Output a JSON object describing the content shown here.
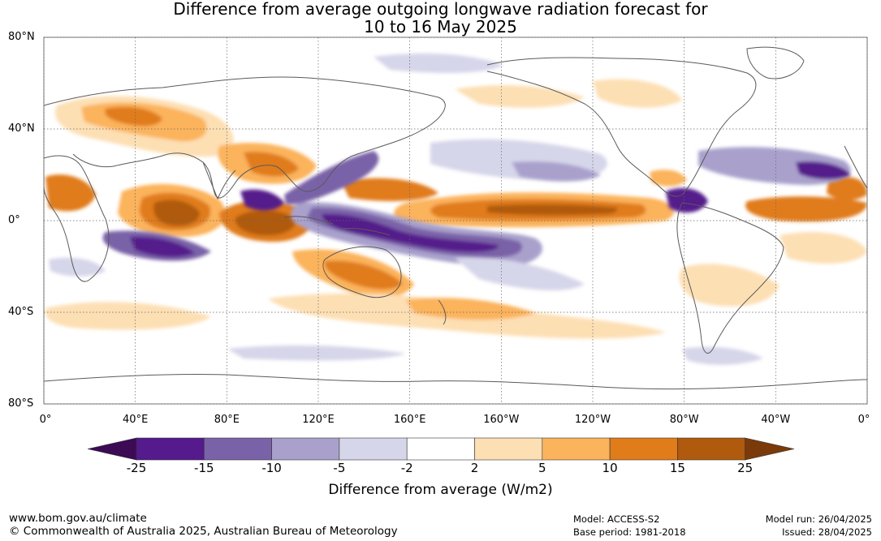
{
  "title_line1": "Difference from average outgoing longwave radiation forecast for",
  "title_line2": "10 to 16 May 2025",
  "lat_labels": [
    {
      "text": "80°N",
      "lat": 80
    },
    {
      "text": "40°N",
      "lat": 40
    },
    {
      "text": "0°",
      "lat": 0
    },
    {
      "text": "40°S",
      "lat": -40
    },
    {
      "text": "80°S",
      "lat": -80
    }
  ],
  "lon_labels": [
    {
      "text": "0°",
      "lon": 0
    },
    {
      "text": "40°E",
      "lon": 40
    },
    {
      "text": "80°E",
      "lon": 80
    },
    {
      "text": "120°E",
      "lon": 120
    },
    {
      "text": "160°E",
      "lon": 160
    },
    {
      "text": "160°W",
      "lon": 200
    },
    {
      "text": "120°W",
      "lon": 240
    },
    {
      "text": "80°W",
      "lon": 280
    },
    {
      "text": "40°W",
      "lon": 320
    },
    {
      "text": "0°",
      "lon": 360
    }
  ],
  "colorbar": {
    "ticks": [
      "-25",
      "-15",
      "-10",
      "-5",
      "-2",
      "2",
      "5",
      "10",
      "15",
      "25"
    ],
    "colors": [
      "#551a8b",
      "#7a62a8",
      "#a9a1cc",
      "#d6d6ea",
      "#ffffff",
      "#fddfb4",
      "#fbb35c",
      "#e07c1a",
      "#b05a0e"
    ],
    "below_color": "#3d0a55",
    "above_color": "#7a3a0a",
    "label": "Difference from average (W/m2)"
  },
  "footer": {
    "website": "www.bom.gov.au/climate",
    "copyright": "© Commonwealth of Australia 2025, Australian Bureau of Meteorology",
    "model": "Model: ACCESS-S2",
    "base_period": "Base period: 1981-2018",
    "model_run": "Model run: 26/04/2025",
    "issued": "Issued: 28/04/2025"
  }
}
